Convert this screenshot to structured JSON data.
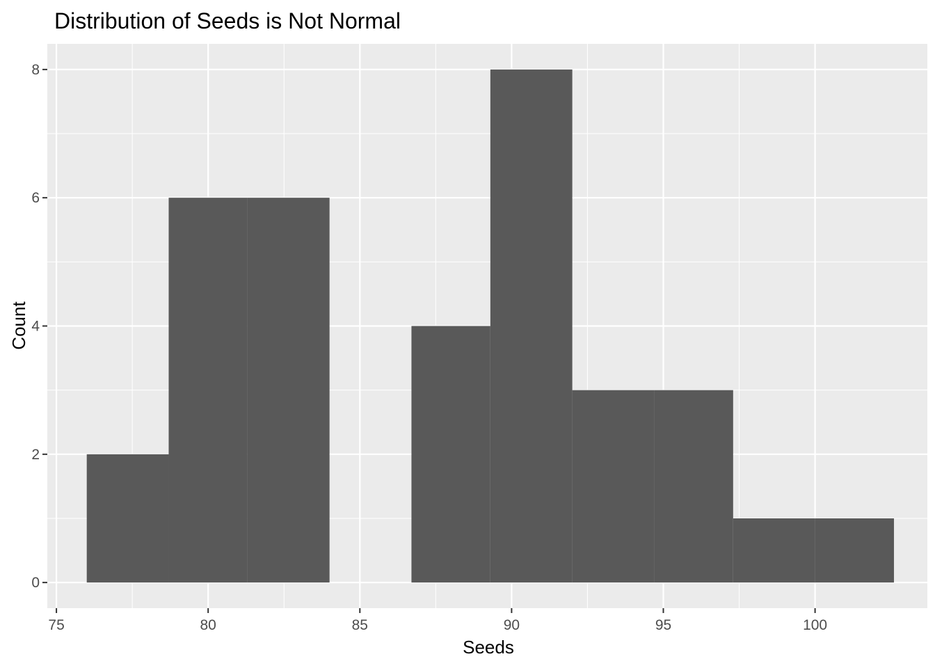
{
  "chart_data": {
    "type": "bar",
    "title": "Distribution of Seeds is Not Normal",
    "xlabel": "Seeds",
    "ylabel": "Count",
    "xlim": [
      74.7,
      103.7
    ],
    "ylim": [
      -0.4,
      8.4
    ],
    "x_ticks": [
      75,
      80,
      85,
      90,
      95,
      100
    ],
    "y_ticks": [
      0,
      2,
      4,
      6,
      8
    ],
    "bins": [
      {
        "x_start": 76.0,
        "x_end": 78.7,
        "count": 2
      },
      {
        "x_start": 78.7,
        "x_end": 81.3,
        "count": 6
      },
      {
        "x_start": 81.3,
        "x_end": 84.0,
        "count": 6
      },
      {
        "x_start": 84.0,
        "x_end": 86.7,
        "count": 0
      },
      {
        "x_start": 86.7,
        "x_end": 89.3,
        "count": 4
      },
      {
        "x_start": 89.3,
        "x_end": 92.0,
        "count": 8
      },
      {
        "x_start": 92.0,
        "x_end": 94.7,
        "count": 3
      },
      {
        "x_start": 94.7,
        "x_end": 97.3,
        "count": 3
      },
      {
        "x_start": 97.3,
        "x_end": 100.0,
        "count": 1
      },
      {
        "x_start": 100.0,
        "x_end": 102.6,
        "count": 1
      }
    ],
    "colors": {
      "panel_background": "#EBEBEB",
      "grid": "#FFFFFF",
      "bar_fill": "#595959",
      "tick_color": "#333333"
    },
    "grid": true,
    "legend": "none"
  }
}
